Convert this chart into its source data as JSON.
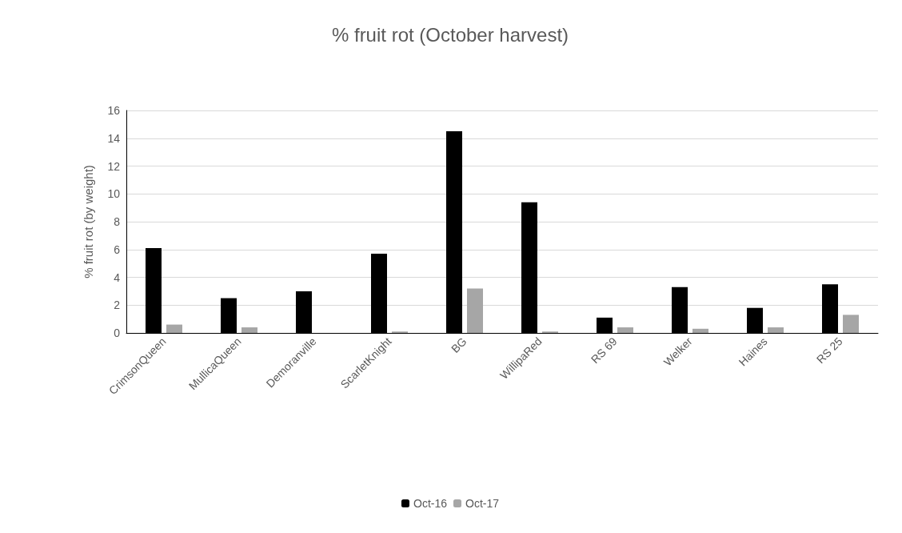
{
  "chart_data": {
    "type": "bar",
    "title": "% fruit rot (October harvest)",
    "ylabel": "% fruit rot (by weight)",
    "categories": [
      "CrimsonQueen",
      "MullicaQueen",
      "Demoranville",
      "ScarletKnight",
      "BG",
      "WillipaRed",
      "RS 69",
      "Welker",
      "Haines",
      "RS 25"
    ],
    "series": [
      {
        "name": "Oct-16",
        "color": "#000000",
        "values": [
          6.1,
          2.5,
          3.0,
          5.7,
          14.5,
          9.4,
          1.1,
          3.3,
          1.8,
          3.5
        ]
      },
      {
        "name": "Oct-17",
        "color": "#a6a6a6",
        "values": [
          0.6,
          0.4,
          0,
          0.1,
          3.2,
          0.1,
          0.4,
          0.3,
          0.4,
          1.3
        ]
      }
    ],
    "ylim": [
      0,
      16
    ],
    "yticks": [
      0,
      2,
      4,
      6,
      8,
      10,
      12,
      14,
      16
    ],
    "grid": "y",
    "legend": "bottom"
  }
}
